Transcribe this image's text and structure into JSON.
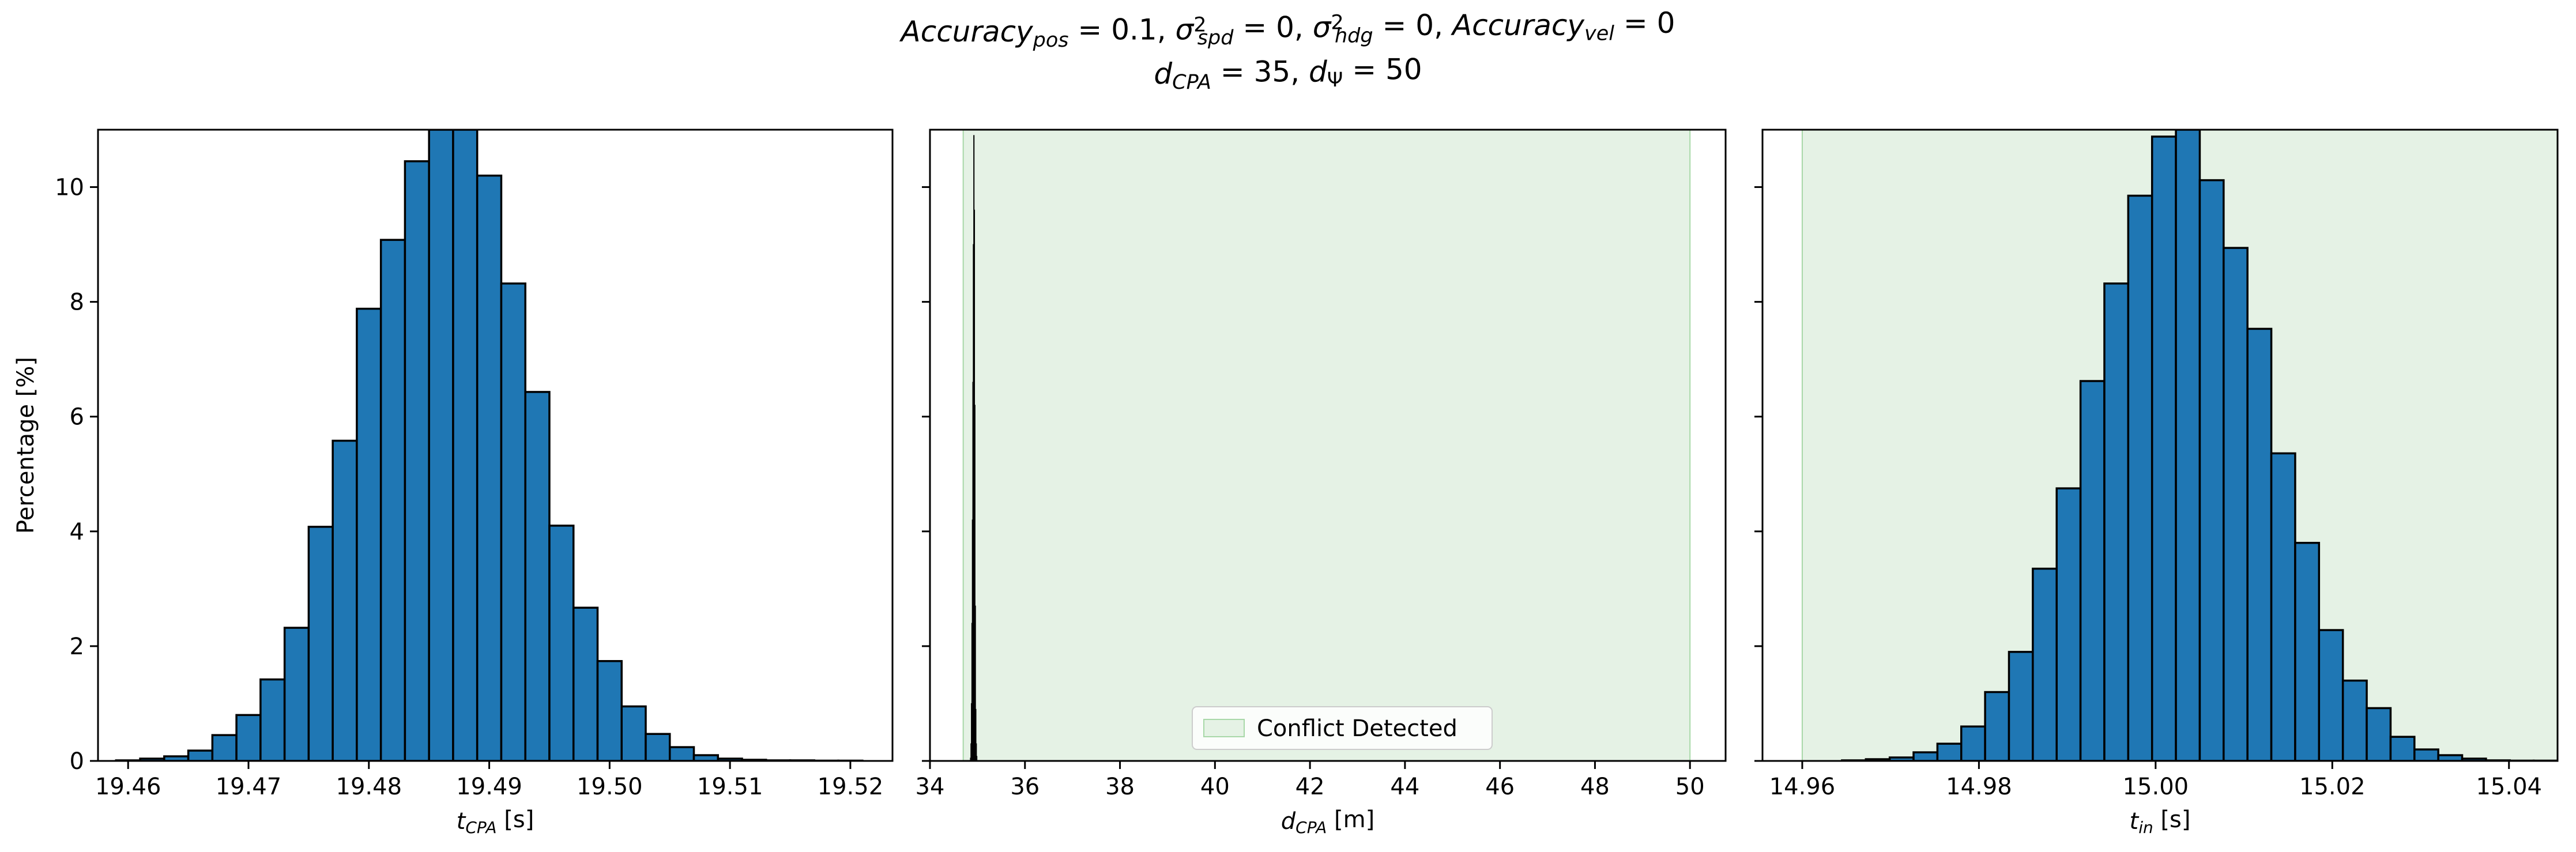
{
  "title": {
    "line1": [
      {
        "t": "Accuracy",
        "s": "i"
      },
      {
        "t": "pos",
        "s": "sub-i"
      },
      {
        "t": " = 0.1, ",
        "s": "n"
      },
      {
        "t": "σ",
        "s": "i"
      },
      {
        "t": "2",
        "s": "sup"
      },
      {
        "t": "spd",
        "s": "sub-i"
      },
      {
        "t": " = 0, ",
        "s": "n"
      },
      {
        "t": "σ",
        "s": "i"
      },
      {
        "t": "2",
        "s": "sup"
      },
      {
        "t": "hdg",
        "s": "sub-i"
      },
      {
        "t": " = 0, ",
        "s": "n"
      },
      {
        "t": "Accuracy",
        "s": "i"
      },
      {
        "t": "vel",
        "s": "sub-i"
      },
      {
        "t": " = 0",
        "s": "n"
      }
    ],
    "line2": [
      {
        "t": "d",
        "s": "i"
      },
      {
        "t": "CPA",
        "s": "sub-i"
      },
      {
        "t": " = 35, ",
        "s": "n"
      },
      {
        "t": "d",
        "s": "i"
      },
      {
        "t": "Ψ",
        "s": "sub"
      },
      {
        "t": " = 50",
        "s": "n"
      }
    ]
  },
  "colors": {
    "bar": "#1f77b4",
    "edge": "#000000",
    "shade": "#e5f2e5",
    "shade_edge": "#a8d8a8"
  },
  "chart_data": [
    {
      "type": "bar",
      "name": "tcpa-histogram",
      "ylabel": "Percentage [%]",
      "xlabel": [
        {
          "t": "t",
          "s": "i"
        },
        {
          "t": "CPA",
          "s": "sub-i"
        },
        {
          "t": " [s]",
          "s": "n"
        }
      ],
      "xlim": [
        19.4575,
        19.5235
      ],
      "ylim": [
        0,
        11
      ],
      "xticks": [
        19.46,
        19.47,
        19.48,
        19.49,
        19.5,
        19.51,
        19.52
      ],
      "xtick_labels": [
        "19.46",
        "19.47",
        "19.48",
        "19.49",
        "19.50",
        "19.51",
        "19.52"
      ],
      "yticks": [
        0,
        2,
        4,
        6,
        8,
        10
      ],
      "ytick_labels": [
        "0",
        "2",
        "4",
        "6",
        "8",
        "10"
      ],
      "bin_start": 19.459,
      "bin_width": 0.002,
      "values": [
        0.01,
        0.04,
        0.08,
        0.18,
        0.45,
        0.8,
        1.42,
        2.32,
        4.08,
        5.58,
        7.88,
        9.08,
        10.45,
        11.0,
        11.0,
        10.2,
        8.32,
        6.43,
        4.1,
        2.67,
        1.74,
        0.95,
        0.47,
        0.24,
        0.1,
        0.04,
        0.02,
        0.01,
        0.01,
        0.005,
        0.005
      ]
    },
    {
      "type": "bar",
      "name": "dcpa-histogram",
      "ylabel": "",
      "xlabel": [
        {
          "t": "d",
          "s": "i"
        },
        {
          "t": "CPA",
          "s": "sub-i"
        },
        {
          "t": " [m]",
          "s": "n"
        }
      ],
      "xlim": [
        34.0,
        50.75
      ],
      "ylim": [
        0,
        11
      ],
      "xticks": [
        34,
        36,
        38,
        40,
        42,
        44,
        46,
        48,
        50
      ],
      "xtick_labels": [
        "34",
        "36",
        "38",
        "40",
        "42",
        "44",
        "46",
        "48",
        "50"
      ],
      "yticks": [
        0,
        2,
        4,
        6,
        8,
        10
      ],
      "shade": {
        "from": 34.7,
        "to": 50.0,
        "label": "Conflict Detected"
      },
      "legend_position": "lower center",
      "bin_start": 34.85,
      "bin_width": 0.01,
      "values": [
        0.05,
        0.3,
        1.0,
        2.4,
        4.2,
        6.6,
        9.0,
        10.9,
        9.6,
        6.2,
        2.7,
        0.9,
        0.3,
        0.08
      ]
    },
    {
      "type": "bar",
      "name": "tin-histogram",
      "ylabel": "",
      "xlabel": [
        {
          "t": "t",
          "s": "i"
        },
        {
          "t": "in",
          "s": "sub-i"
        },
        {
          "t": " [s]",
          "s": "n"
        }
      ],
      "xlim": [
        14.9555,
        15.0455
      ],
      "ylim": [
        0,
        11
      ],
      "xticks": [
        14.96,
        14.98,
        15.0,
        15.02,
        15.04
      ],
      "xtick_labels": [
        "14.96",
        "14.98",
        "15.00",
        "15.02",
        "15.04"
      ],
      "yticks": [
        0,
        2,
        4,
        6,
        8,
        10
      ],
      "shade": {
        "from": 14.96,
        "to": 15.07
      },
      "bin_start": 14.9645,
      "bin_width": 0.0027,
      "values": [
        0.01,
        0.03,
        0.06,
        0.15,
        0.3,
        0.6,
        1.2,
        1.9,
        3.35,
        4.75,
        6.62,
        8.32,
        9.85,
        10.88,
        11.0,
        10.12,
        8.94,
        7.53,
        5.36,
        3.8,
        2.28,
        1.4,
        0.92,
        0.42,
        0.2,
        0.1,
        0.04,
        0.01,
        0.005,
        0.005
      ]
    }
  ]
}
